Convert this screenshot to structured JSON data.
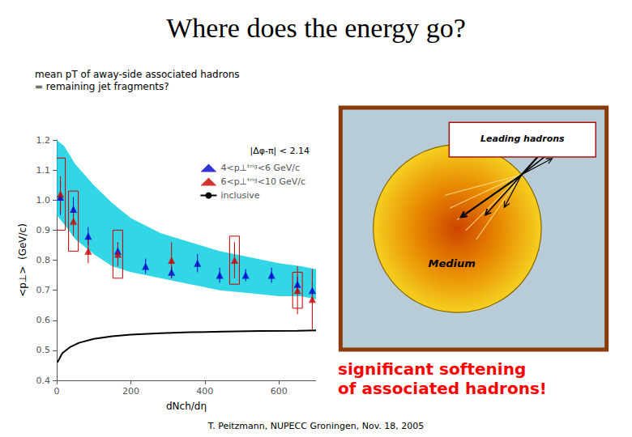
{
  "chart_data": {
    "type": "scatter",
    "title": "Where does the energy go?",
    "subtitle": "mean pT of away-side associated hadrons\n= remaining jet fragments?",
    "x_label": "dNch/dη",
    "y_label": "<p⊥>  (GeV/c)",
    "xlim": [
      0,
      700
    ],
    "xticks": [
      0,
      200,
      400,
      600
    ],
    "ylim": [
      0.4,
      1.2
    ],
    "yticks": [
      0.4,
      0.5,
      0.6,
      0.7,
      0.8,
      0.9,
      {
        "value": 1,
        "label": "1.0"
      },
      1.1,
      1.2
    ],
    "grid": false,
    "legend": "upper right",
    "series": [
      {
        "type": "band",
        "color": "#00ccdd",
        "x": [
          0,
          20,
          50,
          100,
          150,
          200,
          280,
          360,
          440,
          520,
          600,
          660,
          700
        ],
        "upper": [
          1.2,
          1.18,
          1.12,
          1.05,
          0.99,
          0.94,
          0.89,
          0.86,
          0.83,
          0.81,
          0.79,
          0.78,
          0.77
        ],
        "lower": [
          0.95,
          0.92,
          0.87,
          0.82,
          0.78,
          0.76,
          0.74,
          0.72,
          0.7,
          0.69,
          0.68,
          0.68,
          0.67
        ]
      },
      {
        "type": "scatter",
        "name": "4<p⊥ᵗʳⁱᵍ<6 GeV/c",
        "color": "#0000cc",
        "marker": "triangle",
        "x": [
          10,
          45,
          85,
          165,
          240,
          310,
          380,
          440,
          510,
          580,
          650,
          690
        ],
        "values": [
          1.01,
          0.97,
          0.88,
          0.83,
          0.78,
          0.76,
          0.79,
          0.75,
          0.75,
          0.75,
          0.72,
          0.7
        ],
        "errors": [
          0.06,
          0.04,
          0.03,
          0.03,
          0.025,
          0.02,
          0.03,
          0.025,
          0.02,
          0.025,
          0.025,
          0.025
        ]
      },
      {
        "type": "scatter",
        "name": "6<p⊥ᵗʳⁱᵍ<10 GeV/c",
        "color": "#cc0000",
        "marker": "triangle",
        "x": [
          10,
          45,
          85,
          165,
          310,
          480,
          650,
          690
        ],
        "values": [
          1.02,
          0.93,
          0.83,
          0.82,
          0.8,
          0.8,
          0.7,
          0.67
        ],
        "errors": [
          0.06,
          0.05,
          0.04,
          0.04,
          0.06,
          0.06,
          0.08,
          0.1
        ]
      },
      {
        "type": "box",
        "color": "#cc0000",
        "x": [
          10,
          45,
          165,
          480,
          650
        ],
        "values": [
          1.02,
          0.93,
          0.82,
          0.8,
          0.7
        ],
        "errors": [
          0.12,
          0.1,
          0.08,
          0.08,
          0.06
        ]
      },
      {
        "type": "line",
        "name": "inclusive",
        "color": "#000000",
        "line_style": "solid",
        "x": [
          2,
          15,
          35,
          60,
          100,
          150,
          200,
          280,
          360,
          450,
          550,
          650,
          700
        ],
        "values": [
          0.46,
          0.49,
          0.51,
          0.525,
          0.538,
          0.547,
          0.552,
          0.557,
          0.56,
          0.562,
          0.564,
          0.565,
          0.566
        ]
      }
    ],
    "annotations": [
      {
        "text": "|Δφ-π| < 2.14"
      },
      {
        "text": "significant softening\nof associated hadrons!",
        "color": "red"
      },
      {
        "text": "Medium"
      },
      {
        "text": "Leading hadrons"
      },
      {
        "text": "T. Peitzmann, NUPECC Groningen, Nov. 18, 2005"
      }
    ]
  }
}
